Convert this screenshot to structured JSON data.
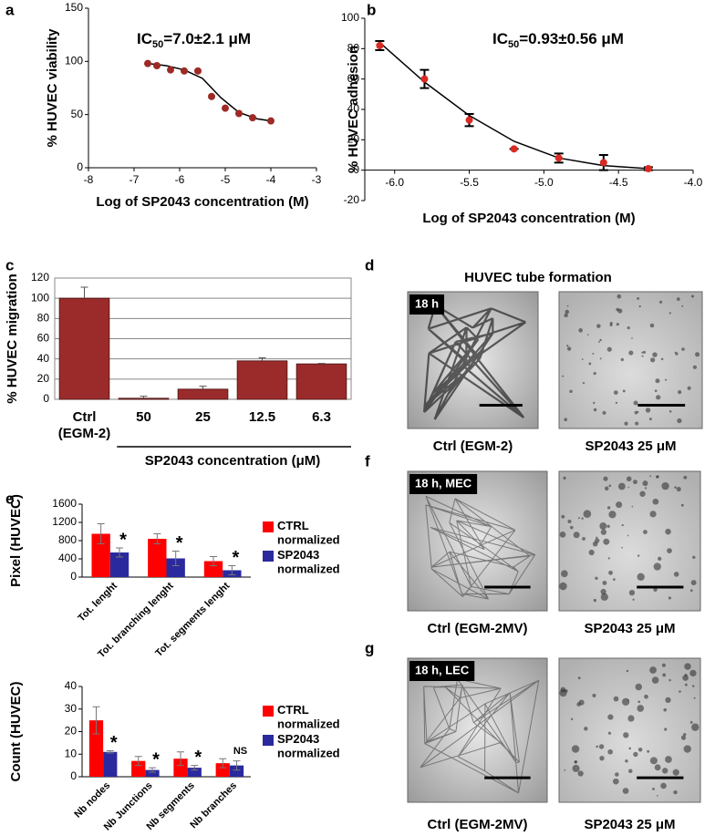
{
  "chart_data": [
    {
      "panel": "a",
      "type": "scatter",
      "annotation": {
        "text": "IC",
        "sub": "50",
        "rest": "=7.0±2.1 μM"
      },
      "x_label": "Log of SP2043 concentration (M)",
      "y_label": "% HUVEC viability",
      "xlim": [
        -8,
        -3
      ],
      "xticks": [
        -8,
        -7,
        -6,
        -5,
        -4,
        -3
      ],
      "ylim": [
        0,
        150
      ],
      "yticks": [
        0,
        50,
        100,
        150
      ],
      "series": [
        {
          "color": "#9e2a26",
          "x": [
            -6.7,
            -6.5,
            -6.2,
            -5.9,
            -5.6,
            -5.3,
            -5.0,
            -4.7,
            -4.4,
            -4.0
          ],
          "values": [
            98,
            96,
            92,
            91,
            91,
            67,
            56,
            51,
            47,
            44
          ]
        }
      ],
      "fit": {
        "color": "#000000",
        "x": [
          -6.7,
          -6.3,
          -5.9,
          -5.5,
          -5.1,
          -4.7,
          -4.3,
          -4.0
        ],
        "values": [
          98,
          96,
          92,
          84,
          66,
          52,
          46,
          44
        ]
      }
    },
    {
      "panel": "b",
      "type": "scatter",
      "annotation": {
        "text": "IC",
        "sub": "50",
        "rest": "=0.93±0.56 μM"
      },
      "x_label": "Log of SP2043 concentration (M)",
      "y_label": "% HUVEC adhesion",
      "xlim": [
        -6.2,
        -4.0
      ],
      "xticks": [
        {
          "value": -6,
          "label": "-6.0"
        },
        {
          "value": -5.5,
          "label": "-5.5"
        },
        {
          "value": -5,
          "label": "-5.0"
        },
        {
          "value": -4.5,
          "label": "-4.5"
        },
        {
          "value": -4,
          "label": "-4.0"
        }
      ],
      "ylim": [
        -20,
        100
      ],
      "yticks": [
        -20,
        0,
        20,
        40,
        60,
        80,
        100
      ],
      "series": [
        {
          "color": "#d92a22",
          "x": [
            -6.1,
            -5.8,
            -5.5,
            -5.2,
            -4.9,
            -4.6,
            -4.3
          ],
          "values": [
            82,
            60,
            33,
            14,
            8,
            5,
            1
          ],
          "errors": [
            3,
            6,
            4,
            0,
            3,
            5,
            1
          ]
        }
      ],
      "fit": {
        "color": "#000000",
        "x": [
          -6.1,
          -5.8,
          -5.5,
          -5.2,
          -4.9,
          -4.6,
          -4.3
        ],
        "values": [
          84,
          58,
          36,
          19,
          8,
          3,
          1
        ]
      }
    },
    {
      "panel": "c",
      "type": "bar",
      "x_label": "SP2043 concentration (μM)",
      "y_label": "% HUVEC migration",
      "categories": [
        "Ctrl (EGM-2)",
        "50",
        "25",
        "12.5",
        "6.3"
      ],
      "values": [
        100,
        1,
        10,
        38,
        35
      ],
      "errors": [
        11,
        2,
        3,
        3,
        0.5
      ],
      "color": "#9b2b2b",
      "ylim": [
        0,
        120
      ],
      "yticks": [
        0,
        20,
        40,
        60,
        80,
        100,
        120
      ],
      "grid": true
    },
    {
      "panel": "e",
      "type": "grouped_bar",
      "y_label": "Pixel (HUVEC)",
      "categories": [
        "Tot. lenght",
        "Tot. branching lenght",
        "Tot. segments lenght"
      ],
      "series": [
        {
          "name": "CTRL normalized",
          "color": "#ff0000",
          "values": [
            950,
            840,
            350
          ],
          "errors": [
            220,
            110,
            100
          ]
        },
        {
          "name": "SP2043 normalized",
          "color": "#2a2a9e",
          "values": [
            540,
            410,
            150
          ],
          "errors": [
            100,
            160,
            100
          ]
        }
      ],
      "annotations": [
        "*",
        "*",
        "*"
      ],
      "ylim": [
        0,
        1600
      ],
      "yticks": [
        0,
        400,
        800,
        1200,
        1600
      ],
      "legend": "right"
    },
    {
      "type": "grouped_bar",
      "y_label": "Count (HUVEC)",
      "categories": [
        "Nb nodes",
        "Nb Junctions",
        "Nb segments",
        "Nb branches"
      ],
      "series": [
        {
          "name": "CTRL normalized",
          "color": "#ff0000",
          "values": [
            25,
            7,
            8,
            6
          ],
          "errors": [
            6,
            2,
            3,
            2
          ]
        },
        {
          "name": "SP2043 normalized",
          "color": "#2a2a9e",
          "values": [
            11,
            3,
            4,
            5
          ],
          "errors": [
            0.5,
            1,
            1,
            2
          ]
        }
      ],
      "annotations": [
        "*",
        "*",
        "*",
        "NS"
      ],
      "ylim": [
        0,
        40
      ],
      "yticks": [
        0,
        10,
        20,
        30,
        40
      ],
      "legend": "right"
    }
  ],
  "micrographs": [
    {
      "label": "d",
      "title": "HUVEC tube formation",
      "images": [
        {
          "badge": "18 h",
          "caption": "Ctrl (EGM-2)"
        },
        {
          "caption": "SP2043 25 μM"
        }
      ]
    },
    {
      "label": "f",
      "images": [
        {
          "badge": "18 h, MEC",
          "caption": "Ctrl (EGM-2MV)"
        },
        {
          "caption": "SP2043 25 μM"
        }
      ]
    },
    {
      "label": "g",
      "images": [
        {
          "badge": "18 h, LEC",
          "caption": "Ctrl (EGM-2MV)"
        },
        {
          "caption": "SP2043 25 μM"
        }
      ]
    }
  ]
}
